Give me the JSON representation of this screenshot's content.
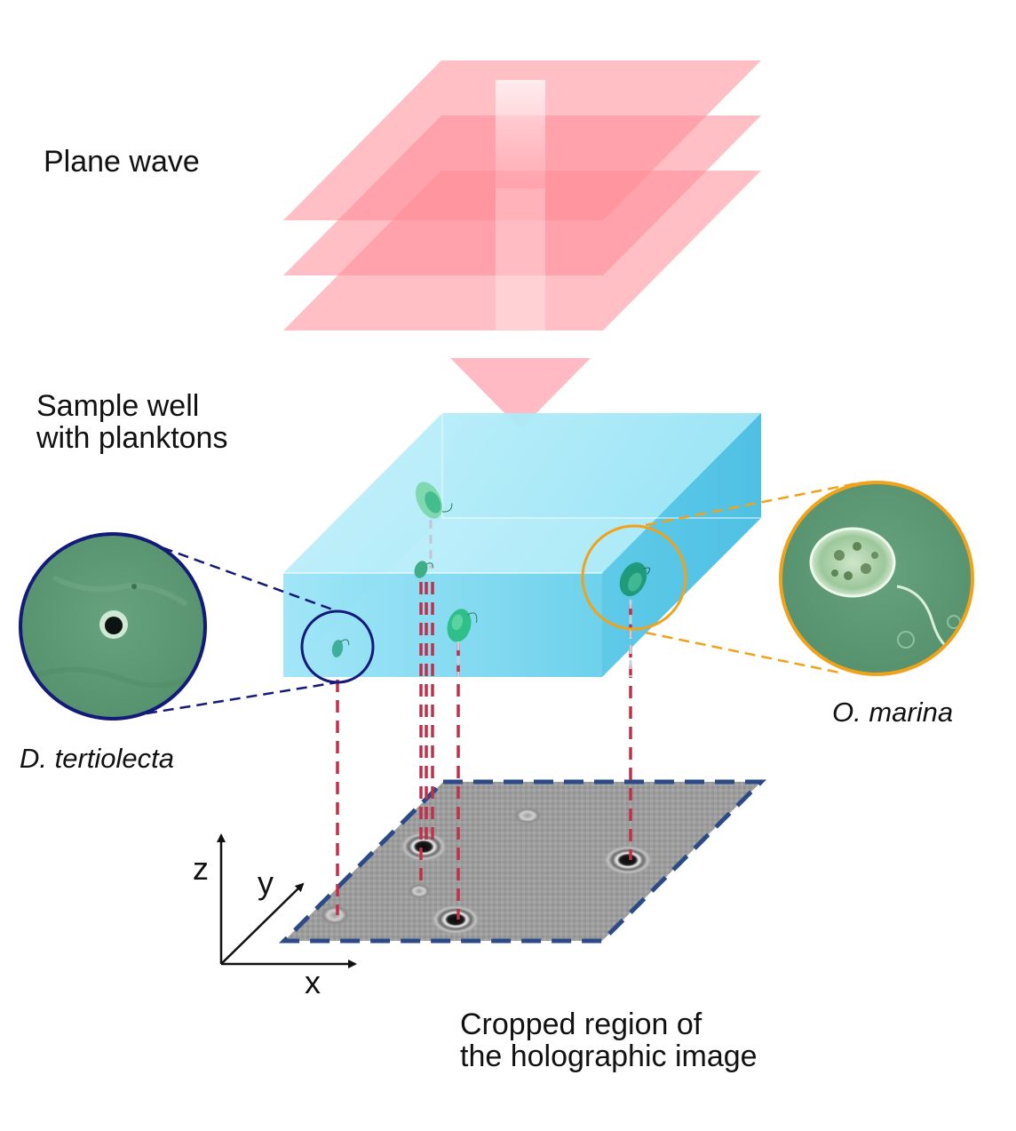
{
  "labels": {
    "plane_wave": "Plane wave",
    "sample_well_line1": "Sample well",
    "sample_well_line2": "with planktons",
    "d_tertiolecta": "D. tertiolecta",
    "o_marina": "O. marina",
    "cropped_line1": "Cropped region of",
    "cropped_line2": "the holographic image"
  },
  "axes": {
    "x": "x",
    "y": "y",
    "z": "z"
  },
  "colors": {
    "plane_wave": "#ff8a96",
    "sample_well": "#7fdcf0",
    "plankton": "#2fbf8a",
    "projection_lines": "#c0304a",
    "hologram_border": "#2b4a86",
    "d_tertiolecta_callout": "#141a7a",
    "o_marina_callout": "#f0a21a",
    "micrograph_background": "#5f9a78"
  }
}
